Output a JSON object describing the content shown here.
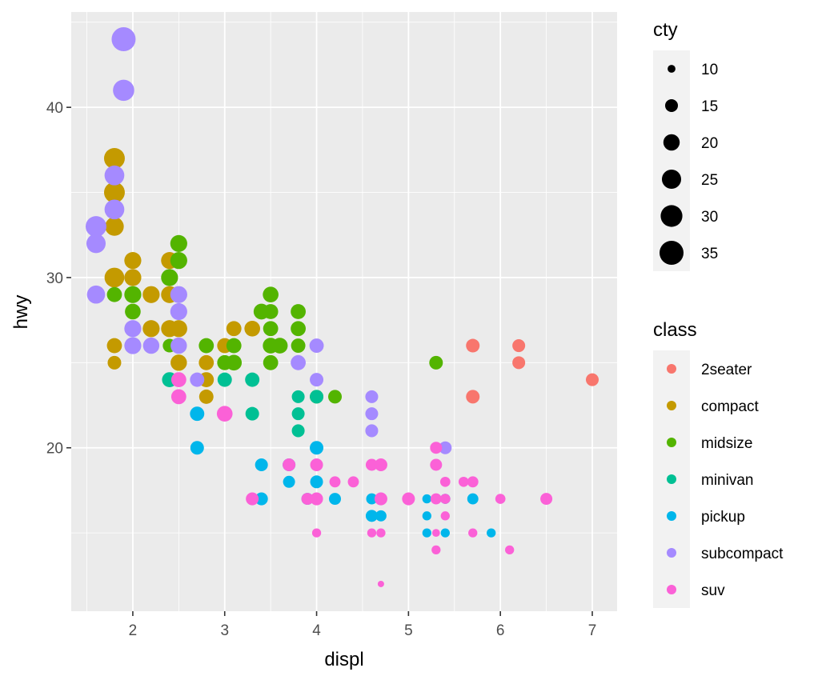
{
  "chart_data": {
    "type": "scatter",
    "title": "",
    "xlabel": "displ",
    "ylabel": "hwy",
    "xlim": [
      1.33,
      7.27
    ],
    "ylim": [
      10.4,
      45.6
    ],
    "x_ticks": [
      2,
      3,
      4,
      5,
      6,
      7
    ],
    "y_ticks": [
      20,
      30,
      40
    ],
    "grid": true,
    "background": "#EBEBEB",
    "size_legend": {
      "title": "cty",
      "values": [
        10,
        15,
        20,
        25,
        30,
        35
      ],
      "position": "right"
    },
    "color_legend": {
      "title": "class",
      "position": "right",
      "entries": [
        {
          "name": "2seater",
          "color": "#F8766D"
        },
        {
          "name": "compact",
          "color": "#C49A00"
        },
        {
          "name": "midsize",
          "color": "#53B400"
        },
        {
          "name": "minivan",
          "color": "#00C094"
        },
        {
          "name": "pickup",
          "color": "#00B6EB"
        },
        {
          "name": "subcompact",
          "color": "#A58AFF"
        },
        {
          "name": "suv",
          "color": "#FB61D7"
        }
      ]
    },
    "points": [
      {
        "x": 5.7,
        "y": 26,
        "cty": 16,
        "class": "2seater"
      },
      {
        "x": 6.2,
        "y": 26,
        "cty": 15,
        "class": "2seater"
      },
      {
        "x": 6.2,
        "y": 25,
        "cty": 15,
        "class": "2seater"
      },
      {
        "x": 5.7,
        "y": 23,
        "cty": 16,
        "class": "2seater"
      },
      {
        "x": 7.0,
        "y": 24,
        "cty": 15,
        "class": "2seater"
      },
      {
        "x": 1.8,
        "y": 37,
        "cty": 28,
        "class": "compact"
      },
      {
        "x": 1.8,
        "y": 35,
        "cty": 28,
        "class": "compact"
      },
      {
        "x": 1.8,
        "y": 33,
        "cty": 24,
        "class": "compact"
      },
      {
        "x": 1.8,
        "y": 30,
        "cty": 26,
        "class": "compact"
      },
      {
        "x": 2.0,
        "y": 31,
        "cty": 21,
        "class": "compact"
      },
      {
        "x": 2.0,
        "y": 30,
        "cty": 21,
        "class": "compact"
      },
      {
        "x": 1.8,
        "y": 26,
        "cty": 18,
        "class": "compact"
      },
      {
        "x": 1.8,
        "y": 25,
        "cty": 16,
        "class": "compact"
      },
      {
        "x": 2.2,
        "y": 29,
        "cty": 21,
        "class": "compact"
      },
      {
        "x": 2.2,
        "y": 27,
        "cty": 21,
        "class": "compact"
      },
      {
        "x": 2.4,
        "y": 31,
        "cty": 21,
        "class": "compact"
      },
      {
        "x": 2.4,
        "y": 29,
        "cty": 21,
        "class": "compact"
      },
      {
        "x": 2.4,
        "y": 27,
        "cty": 21,
        "class": "compact"
      },
      {
        "x": 2.5,
        "y": 27,
        "cty": 21,
        "class": "compact"
      },
      {
        "x": 2.5,
        "y": 25,
        "cty": 20,
        "class": "compact"
      },
      {
        "x": 2.8,
        "y": 25,
        "cty": 18,
        "class": "compact"
      },
      {
        "x": 2.8,
        "y": 24,
        "cty": 18,
        "class": "compact"
      },
      {
        "x": 2.8,
        "y": 23,
        "cty": 17,
        "class": "compact"
      },
      {
        "x": 3.0,
        "y": 26,
        "cty": 18,
        "class": "compact"
      },
      {
        "x": 3.1,
        "y": 27,
        "cty": 18,
        "class": "compact"
      },
      {
        "x": 3.3,
        "y": 27,
        "cty": 19,
        "class": "compact"
      },
      {
        "x": 2.5,
        "y": 32,
        "cty": 21,
        "class": "midsize"
      },
      {
        "x": 2.5,
        "y": 31,
        "cty": 21,
        "class": "midsize"
      },
      {
        "x": 2.4,
        "y": 30,
        "cty": 21,
        "class": "midsize"
      },
      {
        "x": 2.5,
        "y": 29,
        "cty": 20,
        "class": "midsize"
      },
      {
        "x": 1.8,
        "y": 29,
        "cty": 18,
        "class": "midsize"
      },
      {
        "x": 2.0,
        "y": 29,
        "cty": 21,
        "class": "midsize"
      },
      {
        "x": 2.0,
        "y": 28,
        "cty": 19,
        "class": "midsize"
      },
      {
        "x": 2.4,
        "y": 26,
        "cty": 16,
        "class": "midsize"
      },
      {
        "x": 2.8,
        "y": 26,
        "cty": 18,
        "class": "midsize"
      },
      {
        "x": 3.1,
        "y": 26,
        "cty": 18,
        "class": "midsize"
      },
      {
        "x": 3.0,
        "y": 25,
        "cty": 18,
        "class": "midsize"
      },
      {
        "x": 3.1,
        "y": 25,
        "cty": 19,
        "class": "midsize"
      },
      {
        "x": 3.5,
        "y": 29,
        "cty": 19,
        "class": "midsize"
      },
      {
        "x": 3.4,
        "y": 28,
        "cty": 19,
        "class": "midsize"
      },
      {
        "x": 3.5,
        "y": 28,
        "cty": 18,
        "class": "midsize"
      },
      {
        "x": 3.5,
        "y": 27,
        "cty": 18,
        "class": "midsize"
      },
      {
        "x": 3.5,
        "y": 26,
        "cty": 19,
        "class": "midsize"
      },
      {
        "x": 3.6,
        "y": 26,
        "cty": 19,
        "class": "midsize"
      },
      {
        "x": 3.5,
        "y": 25,
        "cty": 18,
        "class": "midsize"
      },
      {
        "x": 3.8,
        "y": 28,
        "cty": 18,
        "class": "midsize"
      },
      {
        "x": 3.8,
        "y": 27,
        "cty": 18,
        "class": "midsize"
      },
      {
        "x": 3.8,
        "y": 26,
        "cty": 17,
        "class": "midsize"
      },
      {
        "x": 4.0,
        "y": 23,
        "cty": 16,
        "class": "midsize"
      },
      {
        "x": 4.2,
        "y": 23,
        "cty": 16,
        "class": "midsize"
      },
      {
        "x": 5.3,
        "y": 25,
        "cty": 16,
        "class": "midsize"
      },
      {
        "x": 2.4,
        "y": 24,
        "cty": 18,
        "class": "minivan"
      },
      {
        "x": 3.0,
        "y": 24,
        "cty": 17,
        "class": "minivan"
      },
      {
        "x": 3.3,
        "y": 24,
        "cty": 17,
        "class": "minivan"
      },
      {
        "x": 3.3,
        "y": 22,
        "cty": 16,
        "class": "minivan"
      },
      {
        "x": 3.8,
        "y": 23,
        "cty": 15,
        "class": "minivan"
      },
      {
        "x": 3.8,
        "y": 22,
        "cty": 15,
        "class": "minivan"
      },
      {
        "x": 3.8,
        "y": 21,
        "cty": 15,
        "class": "minivan"
      },
      {
        "x": 4.0,
        "y": 23,
        "cty": 16,
        "class": "minivan"
      },
      {
        "x": 2.7,
        "y": 22,
        "cty": 17,
        "class": "pickup"
      },
      {
        "x": 2.7,
        "y": 20,
        "cty": 16,
        "class": "pickup"
      },
      {
        "x": 3.4,
        "y": 19,
        "cty": 15,
        "class": "pickup"
      },
      {
        "x": 3.4,
        "y": 17,
        "cty": 15,
        "class": "pickup"
      },
      {
        "x": 3.7,
        "y": 18,
        "cty": 14,
        "class": "pickup"
      },
      {
        "x": 3.7,
        "y": 19,
        "cty": 15,
        "class": "pickup"
      },
      {
        "x": 3.9,
        "y": 17,
        "cty": 14,
        "class": "pickup"
      },
      {
        "x": 4.0,
        "y": 20,
        "cty": 16,
        "class": "pickup"
      },
      {
        "x": 4.0,
        "y": 18,
        "cty": 15,
        "class": "pickup"
      },
      {
        "x": 4.2,
        "y": 17,
        "cty": 14,
        "class": "pickup"
      },
      {
        "x": 4.6,
        "y": 17,
        "cty": 13,
        "class": "pickup"
      },
      {
        "x": 4.6,
        "y": 16,
        "cty": 14,
        "class": "pickup"
      },
      {
        "x": 4.7,
        "y": 17,
        "cty": 13,
        "class": "pickup"
      },
      {
        "x": 4.7,
        "y": 16,
        "cty": 13,
        "class": "pickup"
      },
      {
        "x": 5.2,
        "y": 17,
        "cty": 11,
        "class": "pickup"
      },
      {
        "x": 5.2,
        "y": 16,
        "cty": 11,
        "class": "pickup"
      },
      {
        "x": 5.2,
        "y": 15,
        "cty": 11,
        "class": "pickup"
      },
      {
        "x": 5.4,
        "y": 17,
        "cty": 12,
        "class": "pickup"
      },
      {
        "x": 5.4,
        "y": 15,
        "cty": 11,
        "class": "pickup"
      },
      {
        "x": 5.7,
        "y": 17,
        "cty": 13,
        "class": "pickup"
      },
      {
        "x": 5.9,
        "y": 15,
        "cty": 11,
        "class": "pickup"
      },
      {
        "x": 1.9,
        "y": 44,
        "cty": 35,
        "class": "subcompact"
      },
      {
        "x": 1.9,
        "y": 41,
        "cty": 29,
        "class": "subcompact"
      },
      {
        "x": 1.8,
        "y": 36,
        "cty": 26,
        "class": "subcompact"
      },
      {
        "x": 1.8,
        "y": 34,
        "cty": 26,
        "class": "subcompact"
      },
      {
        "x": 1.6,
        "y": 33,
        "cty": 28,
        "class": "subcompact"
      },
      {
        "x": 1.6,
        "y": 32,
        "cty": 25,
        "class": "subcompact"
      },
      {
        "x": 1.6,
        "y": 29,
        "cty": 23,
        "class": "subcompact"
      },
      {
        "x": 2.0,
        "y": 27,
        "cty": 21,
        "class": "subcompact"
      },
      {
        "x": 2.0,
        "y": 26,
        "cty": 21,
        "class": "subcompact"
      },
      {
        "x": 2.2,
        "y": 26,
        "cty": 20,
        "class": "subcompact"
      },
      {
        "x": 2.5,
        "y": 29,
        "cty": 21,
        "class": "subcompact"
      },
      {
        "x": 2.5,
        "y": 28,
        "cty": 21,
        "class": "subcompact"
      },
      {
        "x": 2.5,
        "y": 26,
        "cty": 20,
        "class": "subcompact"
      },
      {
        "x": 2.7,
        "y": 24,
        "cty": 17,
        "class": "subcompact"
      },
      {
        "x": 3.8,
        "y": 25,
        "cty": 18,
        "class": "subcompact"
      },
      {
        "x": 4.0,
        "y": 26,
        "cty": 17,
        "class": "subcompact"
      },
      {
        "x": 4.0,
        "y": 24,
        "cty": 16,
        "class": "subcompact"
      },
      {
        "x": 4.6,
        "y": 23,
        "cty": 15,
        "class": "subcompact"
      },
      {
        "x": 4.6,
        "y": 22,
        "cty": 15,
        "class": "subcompact"
      },
      {
        "x": 4.6,
        "y": 21,
        "cty": 15,
        "class": "subcompact"
      },
      {
        "x": 5.4,
        "y": 20,
        "cty": 15,
        "class": "subcompact"
      },
      {
        "x": 2.5,
        "y": 24,
        "cty": 18,
        "class": "suv"
      },
      {
        "x": 2.5,
        "y": 23,
        "cty": 18,
        "class": "suv"
      },
      {
        "x": 3.0,
        "y": 22,
        "cty": 19,
        "class": "suv"
      },
      {
        "x": 3.3,
        "y": 17,
        "cty": 15,
        "class": "suv"
      },
      {
        "x": 3.7,
        "y": 19,
        "cty": 15,
        "class": "suv"
      },
      {
        "x": 3.9,
        "y": 17,
        "cty": 14,
        "class": "suv"
      },
      {
        "x": 4.0,
        "y": 19,
        "cty": 15,
        "class": "suv"
      },
      {
        "x": 4.0,
        "y": 17,
        "cty": 15,
        "class": "suv"
      },
      {
        "x": 4.0,
        "y": 15,
        "cty": 11,
        "class": "suv"
      },
      {
        "x": 4.2,
        "y": 18,
        "cty": 13,
        "class": "suv"
      },
      {
        "x": 4.4,
        "y": 18,
        "cty": 13,
        "class": "suv"
      },
      {
        "x": 4.6,
        "y": 19,
        "cty": 14,
        "class": "suv"
      },
      {
        "x": 4.6,
        "y": 15,
        "cty": 11,
        "class": "suv"
      },
      {
        "x": 4.7,
        "y": 19,
        "cty": 15,
        "class": "suv"
      },
      {
        "x": 4.7,
        "y": 17,
        "cty": 15,
        "class": "suv"
      },
      {
        "x": 4.7,
        "y": 15,
        "cty": 11,
        "class": "suv"
      },
      {
        "x": 4.7,
        "y": 12,
        "cty": 9,
        "class": "suv"
      },
      {
        "x": 5.0,
        "y": 17,
        "cty": 15,
        "class": "suv"
      },
      {
        "x": 5.3,
        "y": 20,
        "cty": 14,
        "class": "suv"
      },
      {
        "x": 5.3,
        "y": 19,
        "cty": 14,
        "class": "suv"
      },
      {
        "x": 5.3,
        "y": 17,
        "cty": 13,
        "class": "suv"
      },
      {
        "x": 5.3,
        "y": 15,
        "cty": 10,
        "class": "suv"
      },
      {
        "x": 5.3,
        "y": 14,
        "cty": 11,
        "class": "suv"
      },
      {
        "x": 5.4,
        "y": 18,
        "cty": 12,
        "class": "suv"
      },
      {
        "x": 5.4,
        "y": 17,
        "cty": 12,
        "class": "suv"
      },
      {
        "x": 5.4,
        "y": 16,
        "cty": 11,
        "class": "suv"
      },
      {
        "x": 5.6,
        "y": 18,
        "cty": 12,
        "class": "suv"
      },
      {
        "x": 5.7,
        "y": 18,
        "cty": 13,
        "class": "suv"
      },
      {
        "x": 5.7,
        "y": 15,
        "cty": 11,
        "class": "suv"
      },
      {
        "x": 6.0,
        "y": 17,
        "cty": 12,
        "class": "suv"
      },
      {
        "x": 6.1,
        "y": 14,
        "cty": 11,
        "class": "suv"
      },
      {
        "x": 6.5,
        "y": 17,
        "cty": 14,
        "class": "suv"
      }
    ]
  }
}
